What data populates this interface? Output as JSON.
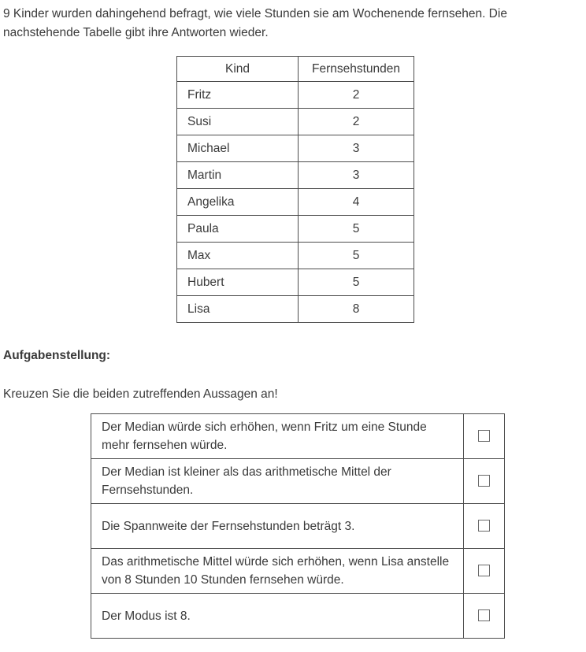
{
  "intro_text": "9 Kinder wurden dahingehend befragt, wie viele Stunden sie am Wochenende fernsehen. Die nachstehende Tabelle gibt ihre Antworten wieder.",
  "data_table": {
    "headers": [
      "Kind",
      "Fernsehstunden"
    ],
    "rows": [
      {
        "name": "Fritz",
        "hours": "2"
      },
      {
        "name": "Susi",
        "hours": "2"
      },
      {
        "name": "Michael",
        "hours": "3"
      },
      {
        "name": "Martin",
        "hours": "3"
      },
      {
        "name": "Angelika",
        "hours": "4"
      },
      {
        "name": "Paula",
        "hours": "5"
      },
      {
        "name": "Max",
        "hours": "5"
      },
      {
        "name": "Hubert",
        "hours": "5"
      },
      {
        "name": "Lisa",
        "hours": "8"
      }
    ]
  },
  "task": {
    "heading": "Aufgabenstellung:",
    "instruction": "Kreuzen Sie die beiden zutreffenden Aussagen an!"
  },
  "statements": [
    {
      "text": "Der Median würde sich erhöhen, wenn Fritz um eine Stunde mehr fernsehen würde.",
      "checked": false
    },
    {
      "text": "Der Median ist kleiner als das arithmetische Mittel der Fernsehstunden.",
      "checked": false
    },
    {
      "text": "Die Spannweite der Fernsehstunden beträgt 3.",
      "checked": false
    },
    {
      "text": "Das arithmetische Mittel würde sich erhöhen, wenn Lisa anstelle von 8 Stunden 10 Stunden fernsehen würde.",
      "checked": false
    },
    {
      "text": "Der Modus ist 8.",
      "checked": false
    }
  ],
  "colors": {
    "text": "#3a3a3a",
    "table_border": "#4d4d4d",
    "checkbox_border": "#6a6a6a",
    "background": "#ffffff"
  }
}
